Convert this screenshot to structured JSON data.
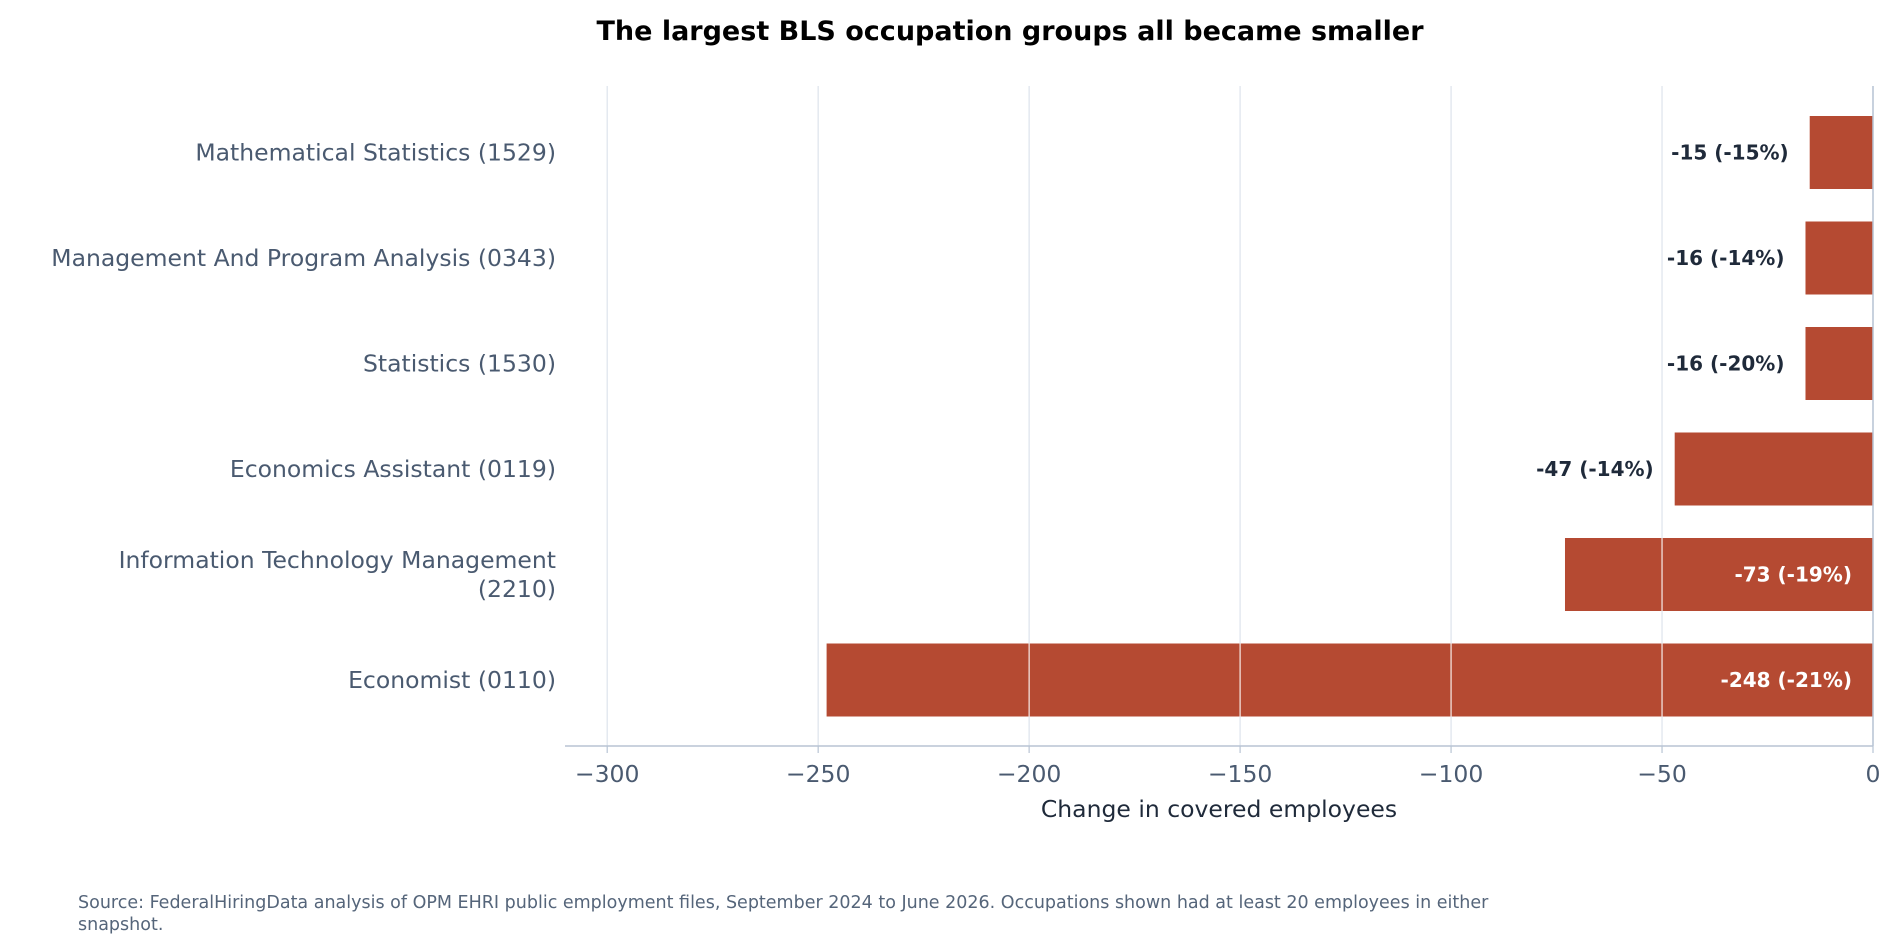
{
  "chart_data": {
    "type": "bar",
    "orientation": "horizontal",
    "title": "The largest BLS occupation groups all became smaller",
    "xlabel": "Change in covered employees",
    "ylabel": "",
    "xlim": [
      -310,
      0
    ],
    "xticks": [
      -300,
      -250,
      -200,
      -150,
      -100,
      -50,
      0
    ],
    "xtick_labels": [
      "−300",
      "−250",
      "−200",
      "−150",
      "−100",
      "−50",
      "0"
    ],
    "grid": "vertical",
    "categories": [
      [
        "Mathematical Statistics (1529)"
      ],
      [
        "Management And Program Analysis (0343)"
      ],
      [
        "Statistics (1530)"
      ],
      [
        "Economics Assistant (0119)"
      ],
      [
        "Information Technology Management",
        "(2210)"
      ],
      [
        "Economist (0110)"
      ]
    ],
    "values": [
      -15,
      -16,
      -16,
      -47,
      -73,
      -248
    ],
    "data_labels": [
      "-15 (-15%)",
      "-16 (-14%)",
      "-16 (-20%)",
      "-47 (-14%)",
      "-73 (-19%)",
      "-248 (-21%)"
    ],
    "colors": {
      "bar": "#b54a32",
      "grid": "#dde3ec",
      "axis": "#b8c4d4",
      "label_dark": "#1f2a3a",
      "label_light": "#ffffff"
    }
  },
  "footer": {
    "source": "Source: FederalHiringData analysis of OPM EHRI public employment files, September 2024 to June 2026. Occupations shown had at least 20 employees in either snapshot."
  }
}
